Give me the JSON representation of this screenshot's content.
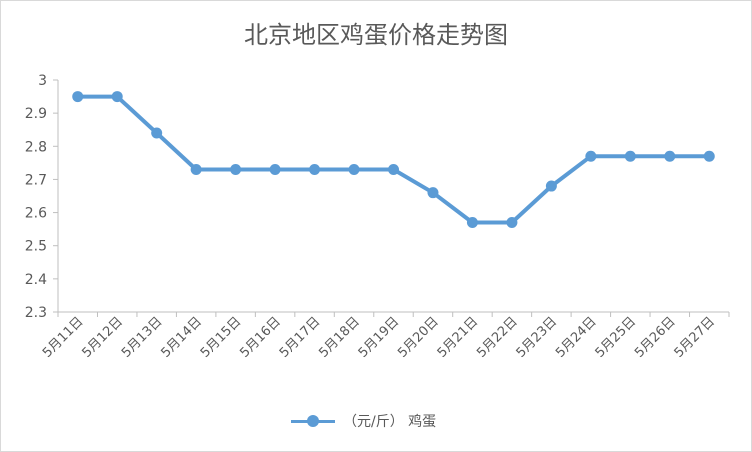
{
  "chart_data": {
    "type": "line",
    "title": "北京地区鸡蛋价格走势图",
    "xlabel": "",
    "ylabel": "",
    "categories": [
      "5月11日",
      "5月12日",
      "5月13日",
      "5月14日",
      "5月15日",
      "5月16日",
      "5月17日",
      "5月18日",
      "5月19日",
      "5月20日",
      "5月21日",
      "5月22日",
      "5月23日",
      "5月24日",
      "5月25日",
      "5月26日",
      "5月27日"
    ],
    "series": [
      {
        "name": "（元/斤） 鸡蛋",
        "color": "#5b9bd5",
        "values": [
          2.95,
          2.95,
          2.84,
          2.73,
          2.73,
          2.73,
          2.73,
          2.73,
          2.73,
          2.66,
          2.57,
          2.57,
          2.68,
          2.77,
          2.77,
          2.77,
          2.77
        ]
      }
    ],
    "ylim": [
      2.3,
      3
    ],
    "yticks": [
      2.3,
      2.4,
      2.5,
      2.6,
      2.7,
      2.8,
      2.9,
      3
    ],
    "ytick_labels": [
      "2.3",
      "2.4",
      "2.5",
      "2.6",
      "2.7",
      "2.8",
      "2.9",
      "3"
    ],
    "grid": false,
    "legend": "bottom"
  }
}
